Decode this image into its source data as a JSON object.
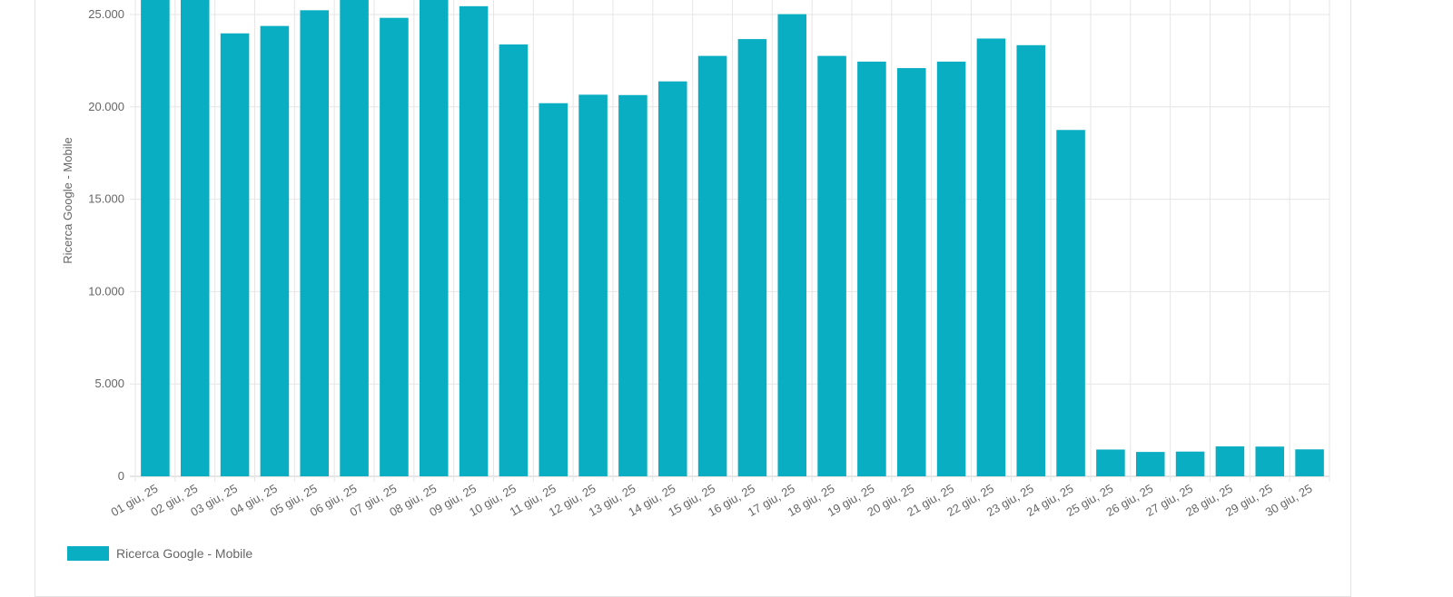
{
  "chart_data": {
    "type": "bar",
    "ylabel": "Ricerca Google - Mobile",
    "ylim": [
      0,
      27000
    ],
    "yticks": [
      {
        "value": 0,
        "label": "0"
      },
      {
        "value": 5000,
        "label": "5.000"
      },
      {
        "value": 10000,
        "label": "10.000"
      },
      {
        "value": 15000,
        "label": "15.000"
      },
      {
        "value": 20000,
        "label": "20.000"
      },
      {
        "value": 25000,
        "label": "25.000"
      }
    ],
    "categories": [
      "01 giu, 25",
      "02 giu, 25",
      "03 giu, 25",
      "04 giu, 25",
      "05 giu, 25",
      "06 giu, 25",
      "07 giu, 25",
      "08 giu, 25",
      "09 giu, 25",
      "10 giu, 25",
      "11 giu, 25",
      "12 giu, 25",
      "13 giu, 25",
      "14 giu, 25",
      "15 giu, 25",
      "16 giu, 25",
      "17 giu, 25",
      "18 giu, 25",
      "19 giu, 25",
      "20 giu, 25",
      "21 giu, 25",
      "22 giu, 25",
      "23 giu, 25",
      "24 giu, 25",
      "25 giu, 25",
      "26 giu, 25",
      "27 giu, 25",
      "28 giu, 25",
      "29 giu, 25",
      "30 giu, 25"
    ],
    "series": [
      {
        "name": "Ricerca Google - Mobile",
        "values": [
          26800,
          26500,
          23980,
          24380,
          25230,
          26600,
          24820,
          26900,
          25450,
          23380,
          20200,
          20660,
          20640,
          21380,
          22760,
          23670,
          25020,
          22760,
          22450,
          22100,
          22450,
          23700,
          23340,
          18750,
          1450,
          1320,
          1340,
          1620,
          1610,
          1460
        ]
      }
    ],
    "color": "#09aec2",
    "grid": true,
    "legend_position": "bottom-left"
  }
}
